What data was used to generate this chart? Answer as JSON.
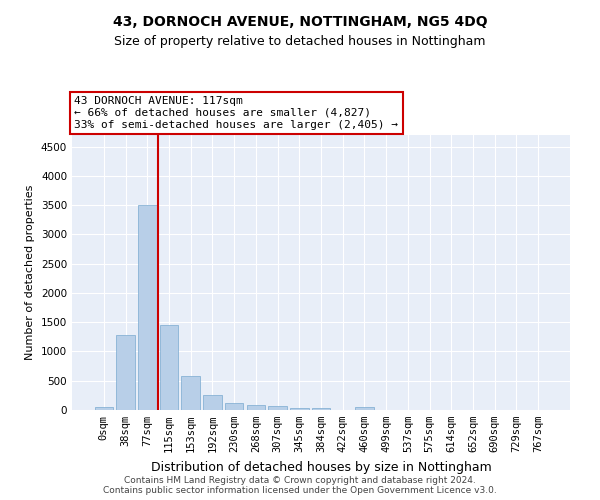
{
  "title": "43, DORNOCH AVENUE, NOTTINGHAM, NG5 4DQ",
  "subtitle": "Size of property relative to detached houses in Nottingham",
  "xlabel": "Distribution of detached houses by size in Nottingham",
  "ylabel": "Number of detached properties",
  "bar_labels": [
    "0sqm",
    "38sqm",
    "77sqm",
    "115sqm",
    "153sqm",
    "192sqm",
    "230sqm",
    "268sqm",
    "307sqm",
    "345sqm",
    "384sqm",
    "422sqm",
    "460sqm",
    "499sqm",
    "537sqm",
    "575sqm",
    "614sqm",
    "652sqm",
    "690sqm",
    "729sqm",
    "767sqm"
  ],
  "bar_values": [
    50,
    1280,
    3500,
    1460,
    580,
    250,
    120,
    80,
    60,
    30,
    30,
    0,
    50,
    0,
    0,
    0,
    0,
    0,
    0,
    0,
    0
  ],
  "bar_color": "#b8cfe8",
  "bar_edge_color": "#7aaad0",
  "vline_index": 3,
  "annotation_line1": "43 DORNOCH AVENUE: 117sqm",
  "annotation_line2": "← 66% of detached houses are smaller (4,827)",
  "annotation_line3": "33% of semi-detached houses are larger (2,405) →",
  "annotation_box_color": "#ffffff",
  "annotation_box_edge_color": "#cc0000",
  "vline_color": "#cc0000",
  "ylim": [
    0,
    4700
  ],
  "yticks": [
    0,
    500,
    1000,
    1500,
    2000,
    2500,
    3000,
    3500,
    4000,
    4500
  ],
  "bg_color": "#e8eef8",
  "grid_color": "#ffffff",
  "footer1": "Contains HM Land Registry data © Crown copyright and database right 2024.",
  "footer2": "Contains public sector information licensed under the Open Government Licence v3.0.",
  "title_fontsize": 10,
  "subtitle_fontsize": 9,
  "ylabel_fontsize": 8,
  "xlabel_fontsize": 9,
  "tick_fontsize": 7.5,
  "footer_fontsize": 6.5,
  "ann_fontsize": 8
}
